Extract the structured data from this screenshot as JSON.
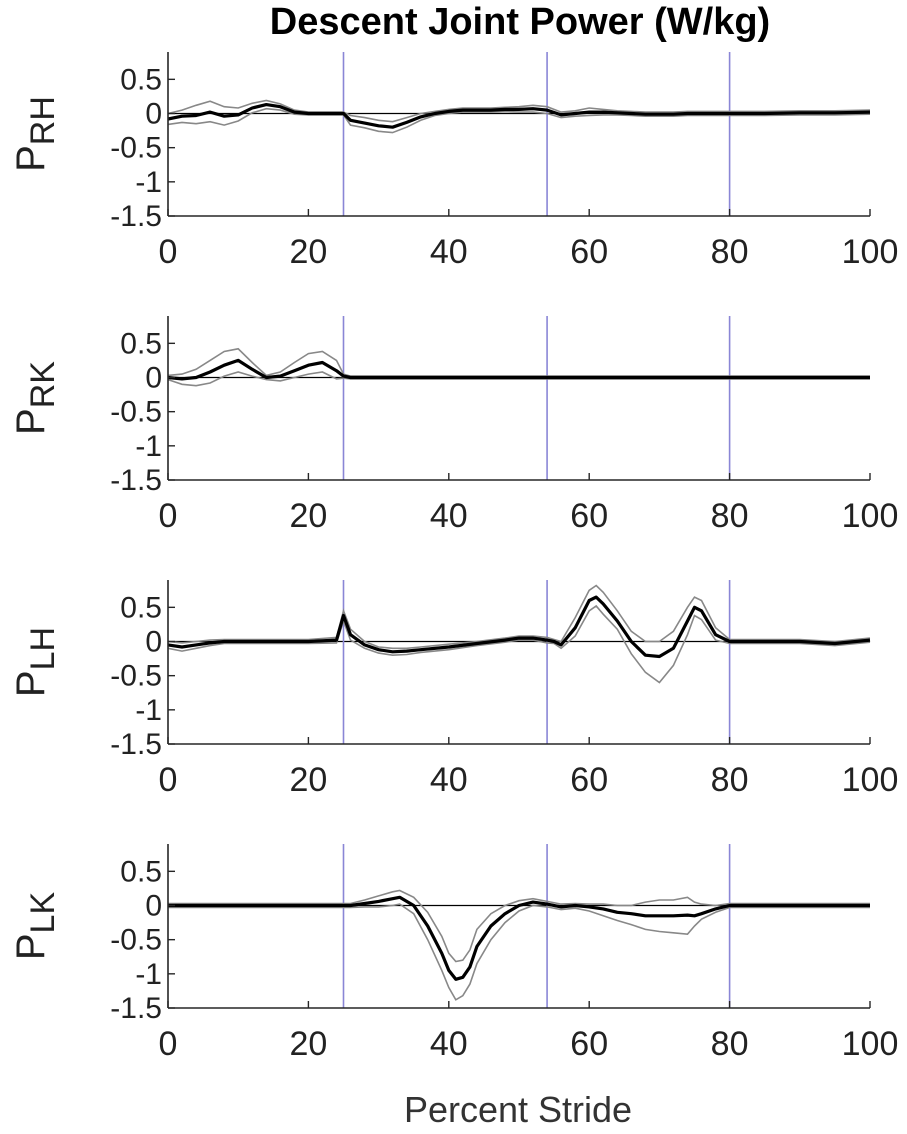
{
  "chart_data": {
    "type": "line",
    "title": "Descent Joint Power (W/kg)",
    "xlabel": "Percent Stride",
    "xlim": [
      0,
      100
    ],
    "xticks": [
      0,
      20,
      40,
      60,
      80,
      100
    ],
    "ylim": [
      -1.5,
      0.9
    ],
    "yticks": [
      0.5,
      0,
      -0.5,
      -1,
      -1.5
    ],
    "ytick_labels": [
      "0.5",
      "0",
      "-0.5",
      "-1",
      "-1.5"
    ],
    "event_lines_x": [
      25,
      54,
      80
    ],
    "colors": {
      "mean": "#000000",
      "band": "#888888",
      "event": "#8a86d6",
      "zero": "#000000",
      "axis": "#262626"
    },
    "panels": [
      {
        "ylabel_main": "P",
        "ylabel_sub": "RH",
        "x": [
          0,
          2,
          4,
          6,
          8,
          10,
          12,
          14,
          16,
          18,
          20,
          22,
          24,
          25,
          26,
          28,
          30,
          32,
          34,
          36,
          38,
          40,
          42,
          44,
          46,
          48,
          50,
          52,
          54,
          56,
          58,
          60,
          62,
          64,
          66,
          68,
          70,
          72,
          74,
          76,
          78,
          80,
          85,
          90,
          95,
          100
        ],
        "mean": [
          -0.08,
          -0.04,
          -0.03,
          0.02,
          -0.04,
          -0.02,
          0.08,
          0.13,
          0.1,
          0.02,
          0.0,
          0.0,
          0.0,
          0.0,
          -0.1,
          -0.14,
          -0.18,
          -0.2,
          -0.13,
          -0.05,
          0.0,
          0.03,
          0.05,
          0.05,
          0.05,
          0.06,
          0.06,
          0.07,
          0.05,
          -0.02,
          0.0,
          0.02,
          0.02,
          0.01,
          0.0,
          -0.01,
          -0.01,
          -0.01,
          0.0,
          0.0,
          0.0,
          0.0,
          0.0,
          0.01,
          0.01,
          0.02
        ],
        "upper": [
          0.0,
          0.05,
          0.12,
          0.18,
          0.1,
          0.08,
          0.15,
          0.19,
          0.14,
          0.05,
          0.02,
          0.02,
          0.02,
          0.02,
          -0.03,
          -0.06,
          -0.1,
          -0.12,
          -0.06,
          0.0,
          0.03,
          0.06,
          0.08,
          0.08,
          0.08,
          0.09,
          0.1,
          0.12,
          0.1,
          0.02,
          0.04,
          0.08,
          0.06,
          0.04,
          0.03,
          0.02,
          0.02,
          0.02,
          0.03,
          0.03,
          0.03,
          0.03,
          0.03,
          0.04,
          0.04,
          0.05
        ],
        "lower": [
          -0.16,
          -0.13,
          -0.15,
          -0.12,
          -0.17,
          -0.11,
          0.01,
          0.07,
          0.05,
          -0.01,
          -0.02,
          -0.02,
          -0.02,
          -0.02,
          -0.17,
          -0.21,
          -0.26,
          -0.28,
          -0.2,
          -0.1,
          -0.03,
          0.0,
          0.02,
          0.02,
          0.02,
          0.03,
          0.02,
          0.02,
          0.0,
          -0.06,
          -0.04,
          -0.03,
          -0.02,
          -0.02,
          -0.03,
          -0.04,
          -0.04,
          -0.04,
          -0.03,
          -0.03,
          -0.03,
          -0.03,
          -0.03,
          -0.02,
          -0.02,
          -0.01
        ]
      },
      {
        "ylabel_main": "P",
        "ylabel_sub": "RK",
        "x": [
          0,
          2,
          4,
          6,
          8,
          10,
          12,
          14,
          16,
          18,
          20,
          22,
          24,
          25,
          26,
          30,
          40,
          50,
          60,
          70,
          80,
          90,
          100
        ],
        "mean": [
          0.0,
          -0.02,
          0.0,
          0.08,
          0.18,
          0.25,
          0.12,
          0.0,
          0.02,
          0.1,
          0.18,
          0.22,
          0.1,
          0.02,
          0.0,
          0.0,
          0.0,
          0.0,
          0.0,
          0.0,
          0.0,
          0.0,
          0.0
        ],
        "upper": [
          0.03,
          0.05,
          0.12,
          0.25,
          0.38,
          0.42,
          0.22,
          0.03,
          0.08,
          0.22,
          0.35,
          0.38,
          0.25,
          0.05,
          0.02,
          0.02,
          0.02,
          0.02,
          0.02,
          0.02,
          0.02,
          0.02,
          0.02
        ],
        "lower": [
          -0.03,
          -0.1,
          -0.12,
          -0.08,
          0.02,
          0.08,
          0.02,
          -0.03,
          -0.05,
          0.0,
          0.05,
          0.08,
          -0.02,
          -0.01,
          -0.02,
          -0.02,
          -0.02,
          -0.02,
          -0.02,
          -0.02,
          -0.02,
          -0.02,
          -0.02
        ]
      },
      {
        "ylabel_main": "P",
        "ylabel_sub": "LH",
        "x": [
          0,
          2,
          4,
          6,
          8,
          10,
          15,
          20,
          24,
          25,
          26,
          28,
          30,
          32,
          34,
          36,
          40,
          44,
          48,
          50,
          52,
          54,
          55,
          56,
          58,
          60,
          61,
          62,
          64,
          66,
          68,
          70,
          72,
          74,
          75,
          76,
          78,
          80,
          85,
          90,
          95,
          100
        ],
        "mean": [
          -0.05,
          -0.08,
          -0.05,
          -0.02,
          0.0,
          0.0,
          0.0,
          0.0,
          0.02,
          0.38,
          0.1,
          -0.05,
          -0.12,
          -0.15,
          -0.14,
          -0.12,
          -0.08,
          -0.03,
          0.02,
          0.05,
          0.05,
          0.02,
          0.0,
          -0.05,
          0.2,
          0.6,
          0.65,
          0.55,
          0.3,
          0.0,
          -0.2,
          -0.22,
          -0.1,
          0.3,
          0.5,
          0.45,
          0.1,
          0.0,
          0.0,
          0.0,
          -0.03,
          0.02
        ],
        "upper": [
          0.0,
          -0.02,
          0.0,
          0.02,
          0.03,
          0.03,
          0.03,
          0.03,
          0.06,
          0.45,
          0.18,
          0.0,
          -0.08,
          -0.1,
          -0.1,
          -0.08,
          -0.04,
          0.0,
          0.05,
          0.08,
          0.08,
          0.06,
          0.03,
          0.0,
          0.35,
          0.75,
          0.82,
          0.72,
          0.45,
          0.15,
          0.0,
          0.0,
          0.15,
          0.5,
          0.65,
          0.6,
          0.2,
          0.03,
          0.03,
          0.03,
          0.0,
          0.05
        ],
        "lower": [
          -0.1,
          -0.14,
          -0.1,
          -0.06,
          -0.03,
          -0.03,
          -0.03,
          -0.03,
          -0.02,
          0.3,
          0.02,
          -0.1,
          -0.17,
          -0.2,
          -0.19,
          -0.16,
          -0.12,
          -0.06,
          -0.01,
          0.02,
          0.02,
          -0.02,
          -0.03,
          -0.1,
          0.08,
          0.45,
          0.52,
          0.4,
          0.18,
          -0.18,
          -0.45,
          -0.6,
          -0.35,
          0.1,
          0.38,
          0.32,
          0.02,
          -0.03,
          -0.03,
          -0.03,
          -0.06,
          -0.01
        ]
      },
      {
        "ylabel_main": "P",
        "ylabel_sub": "LK",
        "x": [
          0,
          10,
          20,
          25,
          26,
          28,
          30,
          32,
          33,
          35,
          37,
          39,
          40,
          41,
          42,
          43,
          44,
          46,
          48,
          50,
          52,
          54,
          56,
          58,
          60,
          62,
          64,
          66,
          68,
          70,
          72,
          74,
          75,
          76,
          78,
          80,
          85,
          90,
          100
        ],
        "mean": [
          0.0,
          0.0,
          0.0,
          0.0,
          0.0,
          0.03,
          0.06,
          0.1,
          0.12,
          0.0,
          -0.3,
          -0.7,
          -0.95,
          -1.08,
          -1.05,
          -0.9,
          -0.6,
          -0.3,
          -0.12,
          0.0,
          0.05,
          0.02,
          -0.02,
          0.0,
          -0.02,
          -0.05,
          -0.1,
          -0.12,
          -0.15,
          -0.15,
          -0.15,
          -0.14,
          -0.15,
          -0.12,
          -0.05,
          0.0,
          0.0,
          0.0,
          0.0
        ],
        "upper": [
          0.03,
          0.03,
          0.03,
          0.03,
          0.03,
          0.08,
          0.14,
          0.2,
          0.22,
          0.12,
          -0.1,
          -0.45,
          -0.7,
          -0.82,
          -0.8,
          -0.65,
          -0.35,
          -0.12,
          0.0,
          0.07,
          0.1,
          0.06,
          0.02,
          0.03,
          0.02,
          0.02,
          0.0,
          0.0,
          0.05,
          0.08,
          0.08,
          0.12,
          0.05,
          0.02,
          0.0,
          0.03,
          0.03,
          0.03,
          0.03
        ],
        "lower": [
          -0.03,
          -0.03,
          -0.03,
          -0.03,
          -0.03,
          -0.02,
          -0.02,
          0.0,
          0.02,
          -0.12,
          -0.5,
          -0.95,
          -1.2,
          -1.38,
          -1.32,
          -1.15,
          -0.85,
          -0.5,
          -0.25,
          -0.08,
          0.0,
          -0.02,
          -0.06,
          -0.04,
          -0.08,
          -0.15,
          -0.22,
          -0.28,
          -0.35,
          -0.38,
          -0.4,
          -0.42,
          -0.3,
          -0.2,
          -0.1,
          -0.03,
          -0.03,
          -0.03,
          -0.03
        ]
      }
    ]
  }
}
